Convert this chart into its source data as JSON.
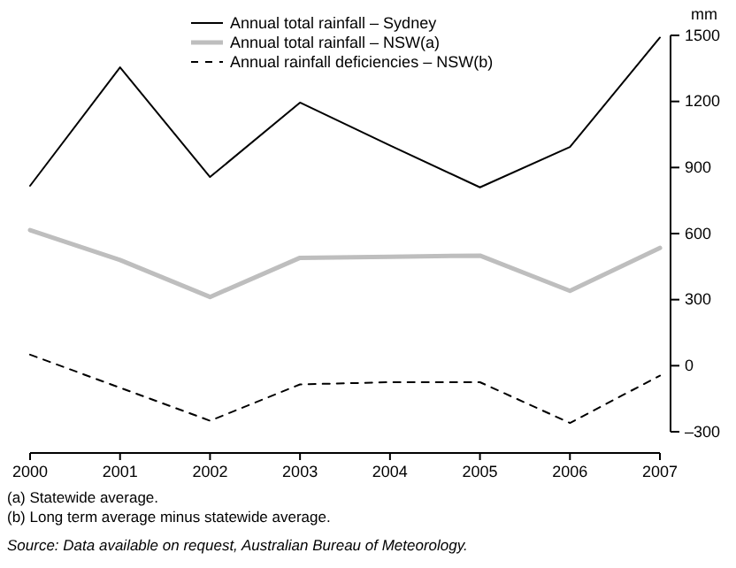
{
  "chart_data": {
    "type": "line",
    "x": [
      2000,
      2001,
      2002,
      2003,
      2004,
      2005,
      2006,
      2007
    ],
    "xlim": [
      2000,
      2007
    ],
    "xticks": [
      2000,
      2001,
      2002,
      2003,
      2004,
      2005,
      2006,
      2007
    ],
    "ylim": [
      -300,
      1500
    ],
    "yticks": [
      {
        "value": -300,
        "label": "–300"
      },
      0,
      300,
      600,
      900,
      1200,
      1500
    ],
    "ylabel": "mm",
    "legend": "top",
    "grid": false,
    "series": [
      {
        "name": "Annual total rainfall – Sydney",
        "color": "#000000",
        "line_style": "solid",
        "values": [
          817,
          1355,
          857,
          1195,
          1000,
          810,
          993,
          1490
        ]
      },
      {
        "name": "Annual total rainfall – NSW(a)",
        "color": "#bebebe",
        "line_style": "solid",
        "values": [
          616,
          480,
          312,
          490,
          495,
          500,
          340,
          535
        ]
      },
      {
        "name": "Annual rainfall deficiencies – NSW(b)",
        "color": "#000000",
        "line_style": "dashed",
        "values": [
          50,
          -100,
          -250,
          -85,
          -75,
          -75,
          -260,
          -45
        ]
      }
    ],
    "annotations": [
      "(a) Statewide average.",
      "(b) Long term average minus statewide average.",
      "Source: Data available on request, Australian Bureau of Meteorology."
    ]
  }
}
